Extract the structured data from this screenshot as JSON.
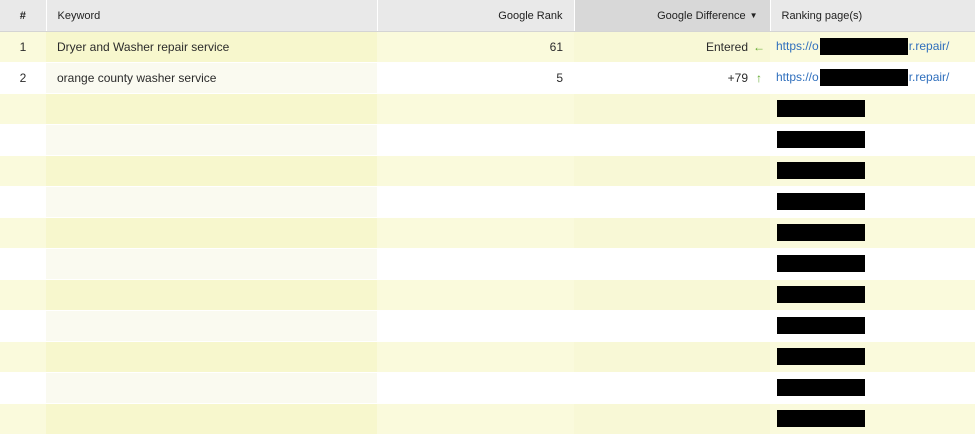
{
  "columns": {
    "num": "#",
    "keyword": "Keyword",
    "rank": "Google Rank",
    "diff": "Google Difference",
    "page": "Ranking page(s)"
  },
  "rows": [
    {
      "num": "1",
      "keyword": "Dryer and Washer repair service",
      "rank": "61",
      "diff": "Entered",
      "arrow": "←",
      "url_start": "https://o",
      "url_end": "r.repair/"
    },
    {
      "num": "2",
      "keyword": "orange county washer service",
      "rank": "5",
      "diff": "+79",
      "arrow": "↑",
      "url_start": "https://o",
      "url_end": "r.repair/"
    },
    "…11 more rows…"
  ],
  "colors": {
    "arrow": "#5fa82a",
    "link": "#2f6fbd"
  }
}
